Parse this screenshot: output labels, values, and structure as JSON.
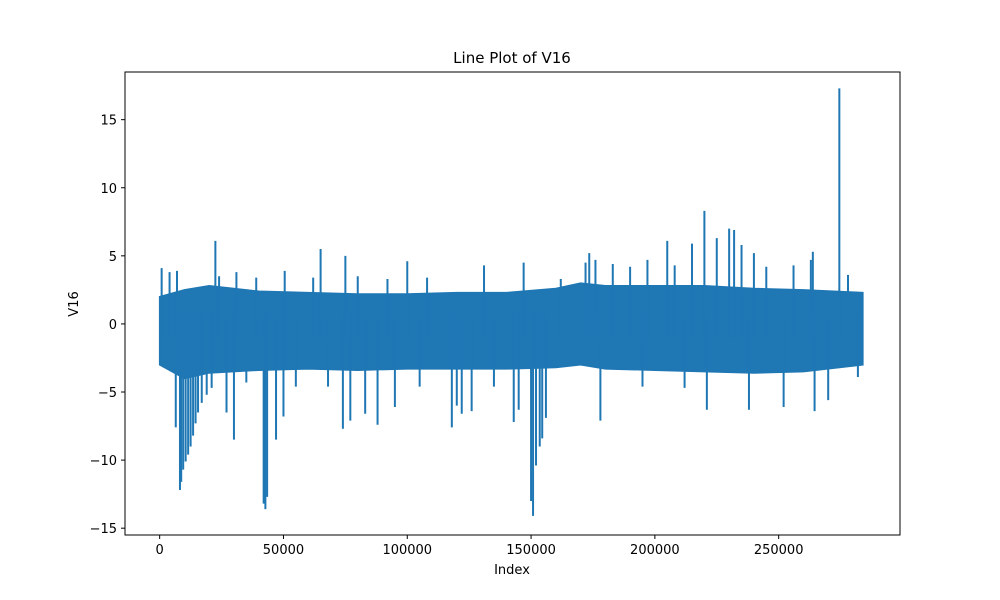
{
  "chart_data": {
    "type": "line",
    "title": "Line Plot of V16",
    "xlabel": "Index",
    "ylabel": "V16",
    "xlim": [
      -14000,
      299000
    ],
    "ylim": [
      -15.5,
      18.5
    ],
    "xticks": [
      0,
      50000,
      100000,
      150000,
      200000,
      250000
    ],
    "xtick_labels": [
      "0",
      "50000",
      "100000",
      "150000",
      "200000",
      "250000"
    ],
    "yticks": [
      -15,
      -10,
      -5,
      0,
      5,
      10,
      15
    ],
    "ytick_labels": [
      "−15",
      "−10",
      "−5",
      "0",
      "5",
      "10",
      "15"
    ],
    "grid": false,
    "color": "#1f77b4",
    "band": {
      "x": [
        0,
        10000,
        20000,
        40000,
        60000,
        80000,
        100000,
        120000,
        140000,
        160000,
        170000,
        180000,
        200000,
        220000,
        240000,
        260000,
        284000
      ],
      "upper": [
        2.0,
        2.5,
        2.8,
        2.4,
        2.3,
        2.2,
        2.2,
        2.3,
        2.3,
        2.6,
        3.0,
        2.8,
        2.8,
        2.8,
        2.6,
        2.5,
        2.3
      ],
      "lower": [
        -3.0,
        -4.0,
        -3.6,
        -3.4,
        -3.3,
        -3.4,
        -3.3,
        -3.3,
        -3.3,
        -3.2,
        -3.0,
        -3.3,
        -3.4,
        -3.5,
        -3.6,
        -3.5,
        -3.0
      ]
    },
    "spikes": [
      {
        "x": 800,
        "y": 4.1
      },
      {
        "x": 4000,
        "y": 3.8
      },
      {
        "x": 6500,
        "y": -7.6
      },
      {
        "x": 7000,
        "y": 3.9
      },
      {
        "x": 8200,
        "y": -12.2
      },
      {
        "x": 8700,
        "y": -11.6
      },
      {
        "x": 9500,
        "y": -10.7
      },
      {
        "x": 10500,
        "y": -10.1
      },
      {
        "x": 11500,
        "y": -9.6
      },
      {
        "x": 12500,
        "y": -9.0
      },
      {
        "x": 13500,
        "y": -8.2
      },
      {
        "x": 14500,
        "y": -7.3
      },
      {
        "x": 15500,
        "y": -6.5
      },
      {
        "x": 17000,
        "y": -5.8
      },
      {
        "x": 19000,
        "y": -5.2
      },
      {
        "x": 21000,
        "y": -4.7
      },
      {
        "x": 22500,
        "y": 6.1
      },
      {
        "x": 24000,
        "y": 3.5
      },
      {
        "x": 27000,
        "y": -6.5
      },
      {
        "x": 30000,
        "y": -8.5
      },
      {
        "x": 31000,
        "y": 3.8
      },
      {
        "x": 35000,
        "y": -4.3
      },
      {
        "x": 39000,
        "y": 3.4
      },
      {
        "x": 42000,
        "y": -13.2
      },
      {
        "x": 42700,
        "y": -13.6
      },
      {
        "x": 43400,
        "y": -12.7
      },
      {
        "x": 47000,
        "y": -8.5
      },
      {
        "x": 50000,
        "y": -6.8
      },
      {
        "x": 50500,
        "y": 3.9
      },
      {
        "x": 55000,
        "y": -4.6
      },
      {
        "x": 62000,
        "y": 3.4
      },
      {
        "x": 65000,
        "y": 5.5
      },
      {
        "x": 68000,
        "y": -4.6
      },
      {
        "x": 74000,
        "y": -7.7
      },
      {
        "x": 75000,
        "y": 5.0
      },
      {
        "x": 77000,
        "y": -7.1
      },
      {
        "x": 80000,
        "y": 3.5
      },
      {
        "x": 83000,
        "y": -6.6
      },
      {
        "x": 88000,
        "y": -7.4
      },
      {
        "x": 92000,
        "y": 3.3
      },
      {
        "x": 95000,
        "y": -6.1
      },
      {
        "x": 100000,
        "y": 4.6
      },
      {
        "x": 105000,
        "y": -4.6
      },
      {
        "x": 108000,
        "y": 3.4
      },
      {
        "x": 118000,
        "y": -7.6
      },
      {
        "x": 120000,
        "y": -6.0
      },
      {
        "x": 122000,
        "y": -6.6
      },
      {
        "x": 126000,
        "y": -6.4
      },
      {
        "x": 131000,
        "y": 4.3
      },
      {
        "x": 135000,
        "y": -4.6
      },
      {
        "x": 143000,
        "y": -7.2
      },
      {
        "x": 145000,
        "y": -6.3
      },
      {
        "x": 147000,
        "y": 4.5
      },
      {
        "x": 150000,
        "y": -13.0
      },
      {
        "x": 150800,
        "y": -14.1
      },
      {
        "x": 152000,
        "y": -10.4
      },
      {
        "x": 153500,
        "y": -9.0
      },
      {
        "x": 154500,
        "y": -8.4
      },
      {
        "x": 156000,
        "y": -6.9
      },
      {
        "x": 162000,
        "y": 3.3
      },
      {
        "x": 172000,
        "y": 4.5
      },
      {
        "x": 173500,
        "y": 5.2
      },
      {
        "x": 176000,
        "y": 4.7
      },
      {
        "x": 178000,
        "y": -7.1
      },
      {
        "x": 183000,
        "y": 4.4
      },
      {
        "x": 190000,
        "y": 4.2
      },
      {
        "x": 195000,
        "y": -4.6
      },
      {
        "x": 197000,
        "y": 4.7
      },
      {
        "x": 205000,
        "y": 6.1
      },
      {
        "x": 208000,
        "y": 4.3
      },
      {
        "x": 212000,
        "y": -4.7
      },
      {
        "x": 215000,
        "y": 5.9
      },
      {
        "x": 220000,
        "y": 8.3
      },
      {
        "x": 221000,
        "y": -6.3
      },
      {
        "x": 225000,
        "y": 6.3
      },
      {
        "x": 230000,
        "y": 7.0
      },
      {
        "x": 232000,
        "y": 6.9
      },
      {
        "x": 235000,
        "y": 5.8
      },
      {
        "x": 238000,
        "y": -6.3
      },
      {
        "x": 240000,
        "y": 5.2
      },
      {
        "x": 245000,
        "y": 4.2
      },
      {
        "x": 252000,
        "y": -6.1
      },
      {
        "x": 256000,
        "y": 4.3
      },
      {
        "x": 263000,
        "y": 4.7
      },
      {
        "x": 263800,
        "y": 5.3
      },
      {
        "x": 264500,
        "y": -6.4
      },
      {
        "x": 270000,
        "y": -5.6
      },
      {
        "x": 274500,
        "y": 17.3
      },
      {
        "x": 278000,
        "y": 3.6
      },
      {
        "x": 282000,
        "y": -3.9
      }
    ]
  }
}
